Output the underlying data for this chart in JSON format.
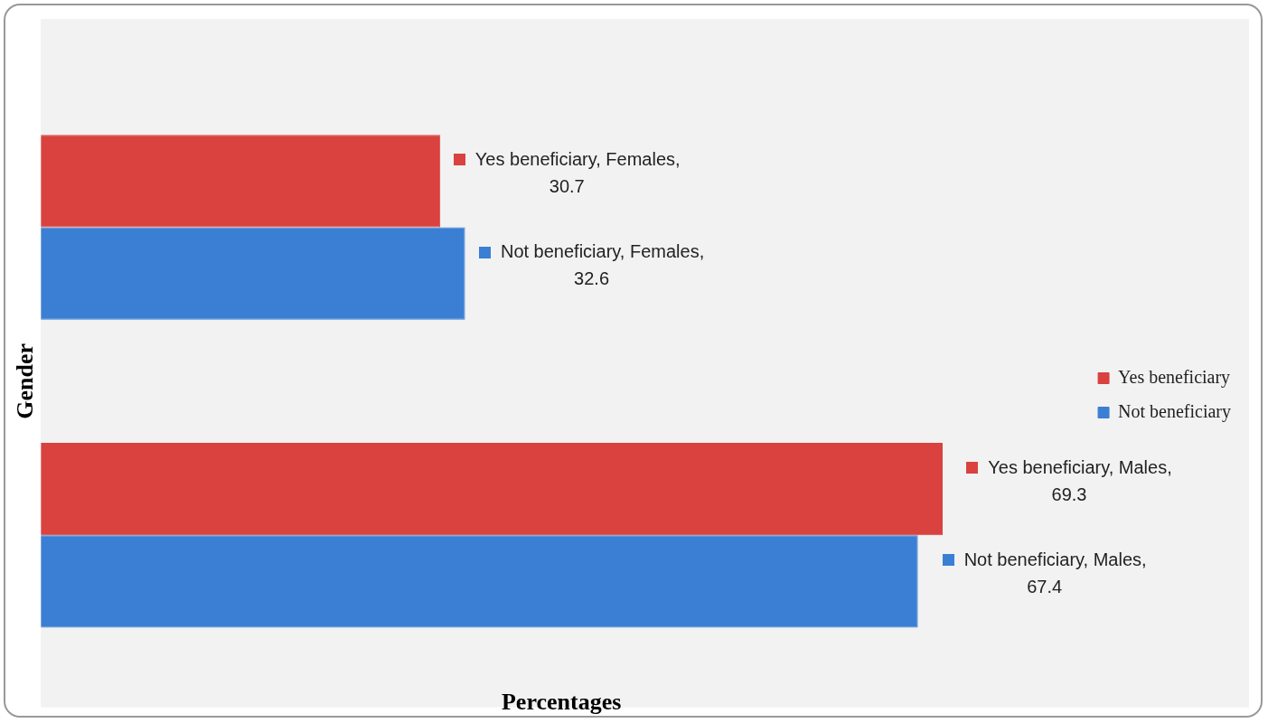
{
  "chart_data": {
    "type": "bar",
    "orientation": "horizontal",
    "categories": [
      null,
      null
    ],
    "xlabel": "Percentages",
    "ylabel": "Gender",
    "grid": false,
    "legend": "right",
    "series": [
      {
        "name": "Yes beneficiary",
        "color": "#d9423e",
        "values": [
          30.7,
          69.3
        ],
        "value_labels": [
          "Yes beneficiary, Females, 30.7",
          "Yes beneficiary, Males, 69.3"
        ]
      },
      {
        "name": "Not beneficiary",
        "color": "#3b7fd4",
        "values": [
          32.6,
          67.4
        ],
        "value_labels": [
          "Not beneficiary, Females, 32.6",
          "Not beneficiary, Males, 67.4"
        ]
      }
    ]
  }
}
